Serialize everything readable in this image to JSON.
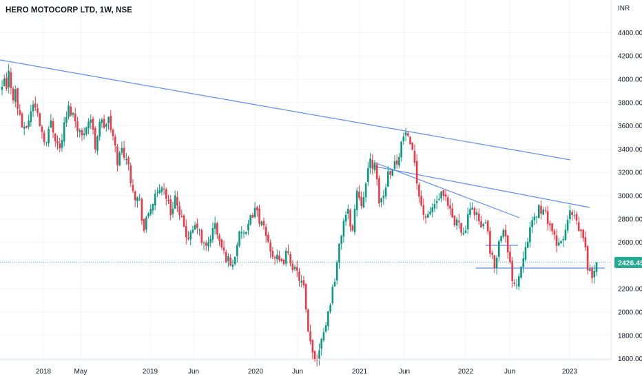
{
  "header": {
    "title": "HERO MOTOCORP LTD, 1W, NSE"
  },
  "chart_data": {
    "type": "candlestick",
    "title": "HERO MOTOCORP LTD, 1W, NSE",
    "currency": "INR",
    "current_price": "2426.45",
    "colors": {
      "up": "#089981",
      "down": "#F23645",
      "trendline": "#5B8DEF",
      "price_line": "#22AB94"
    },
    "y_ticks": [
      "1600.00",
      "1800.00",
      "2000.00",
      "2200.00",
      "2400.00",
      "2600.00",
      "2800.00",
      "3000.00",
      "3200.00",
      "3400.00",
      "3600.00",
      "3800.00",
      "4000.00",
      "4200.00",
      "4400.00"
    ],
    "ylim": [
      1450,
      4550
    ],
    "x_ticks": [
      "2018",
      "May",
      "2019",
      "Jun",
      "2020",
      "Jun",
      "2021",
      "Jun",
      "2022",
      "Jun",
      "2023"
    ],
    "grid": true,
    "price_path": [
      [
        0,
        3900
      ],
      [
        1,
        4000
      ],
      [
        2,
        3900
      ],
      [
        3,
        4050
      ],
      [
        4,
        3950
      ],
      [
        5,
        3850
      ],
      [
        6,
        3900
      ],
      [
        7,
        3750
      ],
      [
        8,
        3700
      ],
      [
        9,
        3600
      ],
      [
        10,
        3550
      ],
      [
        12,
        3650
      ],
      [
        14,
        3800
      ],
      [
        16,
        3700
      ],
      [
        18,
        3550
      ],
      [
        20,
        3450
      ],
      [
        22,
        3650
      ],
      [
        24,
        3500
      ],
      [
        26,
        3400
      ],
      [
        28,
        3600
      ],
      [
        30,
        3750
      ],
      [
        32,
        3700
      ],
      [
        34,
        3600
      ],
      [
        36,
        3500
      ],
      [
        38,
        3620
      ],
      [
        40,
        3660
      ],
      [
        42,
        3420
      ],
      [
        44,
        3650
      ],
      [
        46,
        3600
      ],
      [
        48,
        3650
      ],
      [
        50,
        3500
      ],
      [
        52,
        3300
      ],
      [
        54,
        3400
      ],
      [
        56,
        3330
      ],
      [
        58,
        3150
      ],
      [
        60,
        3000
      ],
      [
        62,
        2950
      ],
      [
        64,
        2700
      ],
      [
        66,
        2850
      ],
      [
        68,
        2950
      ],
      [
        70,
        3000
      ],
      [
        72,
        3100
      ],
      [
        74,
        3000
      ],
      [
        76,
        2850
      ],
      [
        78,
        3000
      ],
      [
        80,
        2800
      ],
      [
        82,
        2750
      ],
      [
        84,
        2600
      ],
      [
        86,
        2700
      ],
      [
        88,
        2750
      ],
      [
        90,
        2600
      ],
      [
        92,
        2550
      ],
      [
        94,
        2650
      ],
      [
        96,
        2750
      ],
      [
        98,
        2600
      ],
      [
        100,
        2500
      ],
      [
        102,
        2450
      ],
      [
        104,
        2400
      ],
      [
        106,
        2600
      ],
      [
        108,
        2700
      ],
      [
        110,
        2650
      ],
      [
        112,
        2800
      ],
      [
        114,
        2900
      ],
      [
        116,
        2800
      ],
      [
        118,
        2700
      ],
      [
        120,
        2600
      ],
      [
        122,
        2500
      ],
      [
        124,
        2450
      ],
      [
        126,
        2400
      ],
      [
        128,
        2500
      ],
      [
        130,
        2450
      ],
      [
        132,
        2350
      ],
      [
        134,
        2300
      ],
      [
        136,
        2200
      ],
      [
        138,
        1800
      ],
      [
        140,
        1650
      ],
      [
        142,
        1600
      ],
      [
        144,
        1800
      ],
      [
        146,
        1900
      ],
      [
        148,
        2100
      ],
      [
        150,
        2300
      ],
      [
        152,
        2550
      ],
      [
        154,
        2800
      ],
      [
        156,
        2850
      ],
      [
        158,
        2700
      ],
      [
        160,
        3050
      ],
      [
        162,
        2950
      ],
      [
        164,
        3100
      ],
      [
        166,
        3300
      ],
      [
        168,
        3250
      ],
      [
        170,
        2950
      ],
      [
        172,
        3000
      ],
      [
        174,
        3200
      ],
      [
        176,
        3250
      ],
      [
        178,
        3300
      ],
      [
        180,
        3450
      ],
      [
        182,
        3550
      ],
      [
        184,
        3400
      ],
      [
        186,
        3300
      ],
      [
        188,
        3000
      ],
      [
        190,
        2850
      ],
      [
        192,
        2800
      ],
      [
        194,
        2900
      ],
      [
        196,
        2950
      ],
      [
        198,
        3000
      ],
      [
        200,
        2950
      ],
      [
        202,
        2850
      ],
      [
        204,
        2750
      ],
      [
        206,
        2800
      ],
      [
        208,
        2650
      ],
      [
        210,
        2800
      ],
      [
        212,
        2900
      ],
      [
        214,
        2850
      ],
      [
        216,
        2700
      ],
      [
        218,
        2800
      ],
      [
        220,
        2500
      ],
      [
        222,
        2400
      ],
      [
        224,
        2600
      ],
      [
        226,
        2750
      ],
      [
        228,
        2500
      ],
      [
        230,
        2300
      ],
      [
        232,
        2250
      ],
      [
        234,
        2400
      ],
      [
        236,
        2600
      ],
      [
        238,
        2700
      ],
      [
        240,
        2800
      ],
      [
        242,
        2900
      ],
      [
        244,
        2850
      ],
      [
        246,
        2800
      ],
      [
        248,
        2700
      ],
      [
        250,
        2550
      ],
      [
        252,
        2600
      ],
      [
        254,
        2700
      ],
      [
        256,
        2850
      ],
      [
        258,
        2800
      ],
      [
        260,
        2700
      ],
      [
        262,
        2650
      ],
      [
        264,
        2400
      ],
      [
        266,
        2300
      ],
      [
        268,
        2426
      ]
    ]
  }
}
